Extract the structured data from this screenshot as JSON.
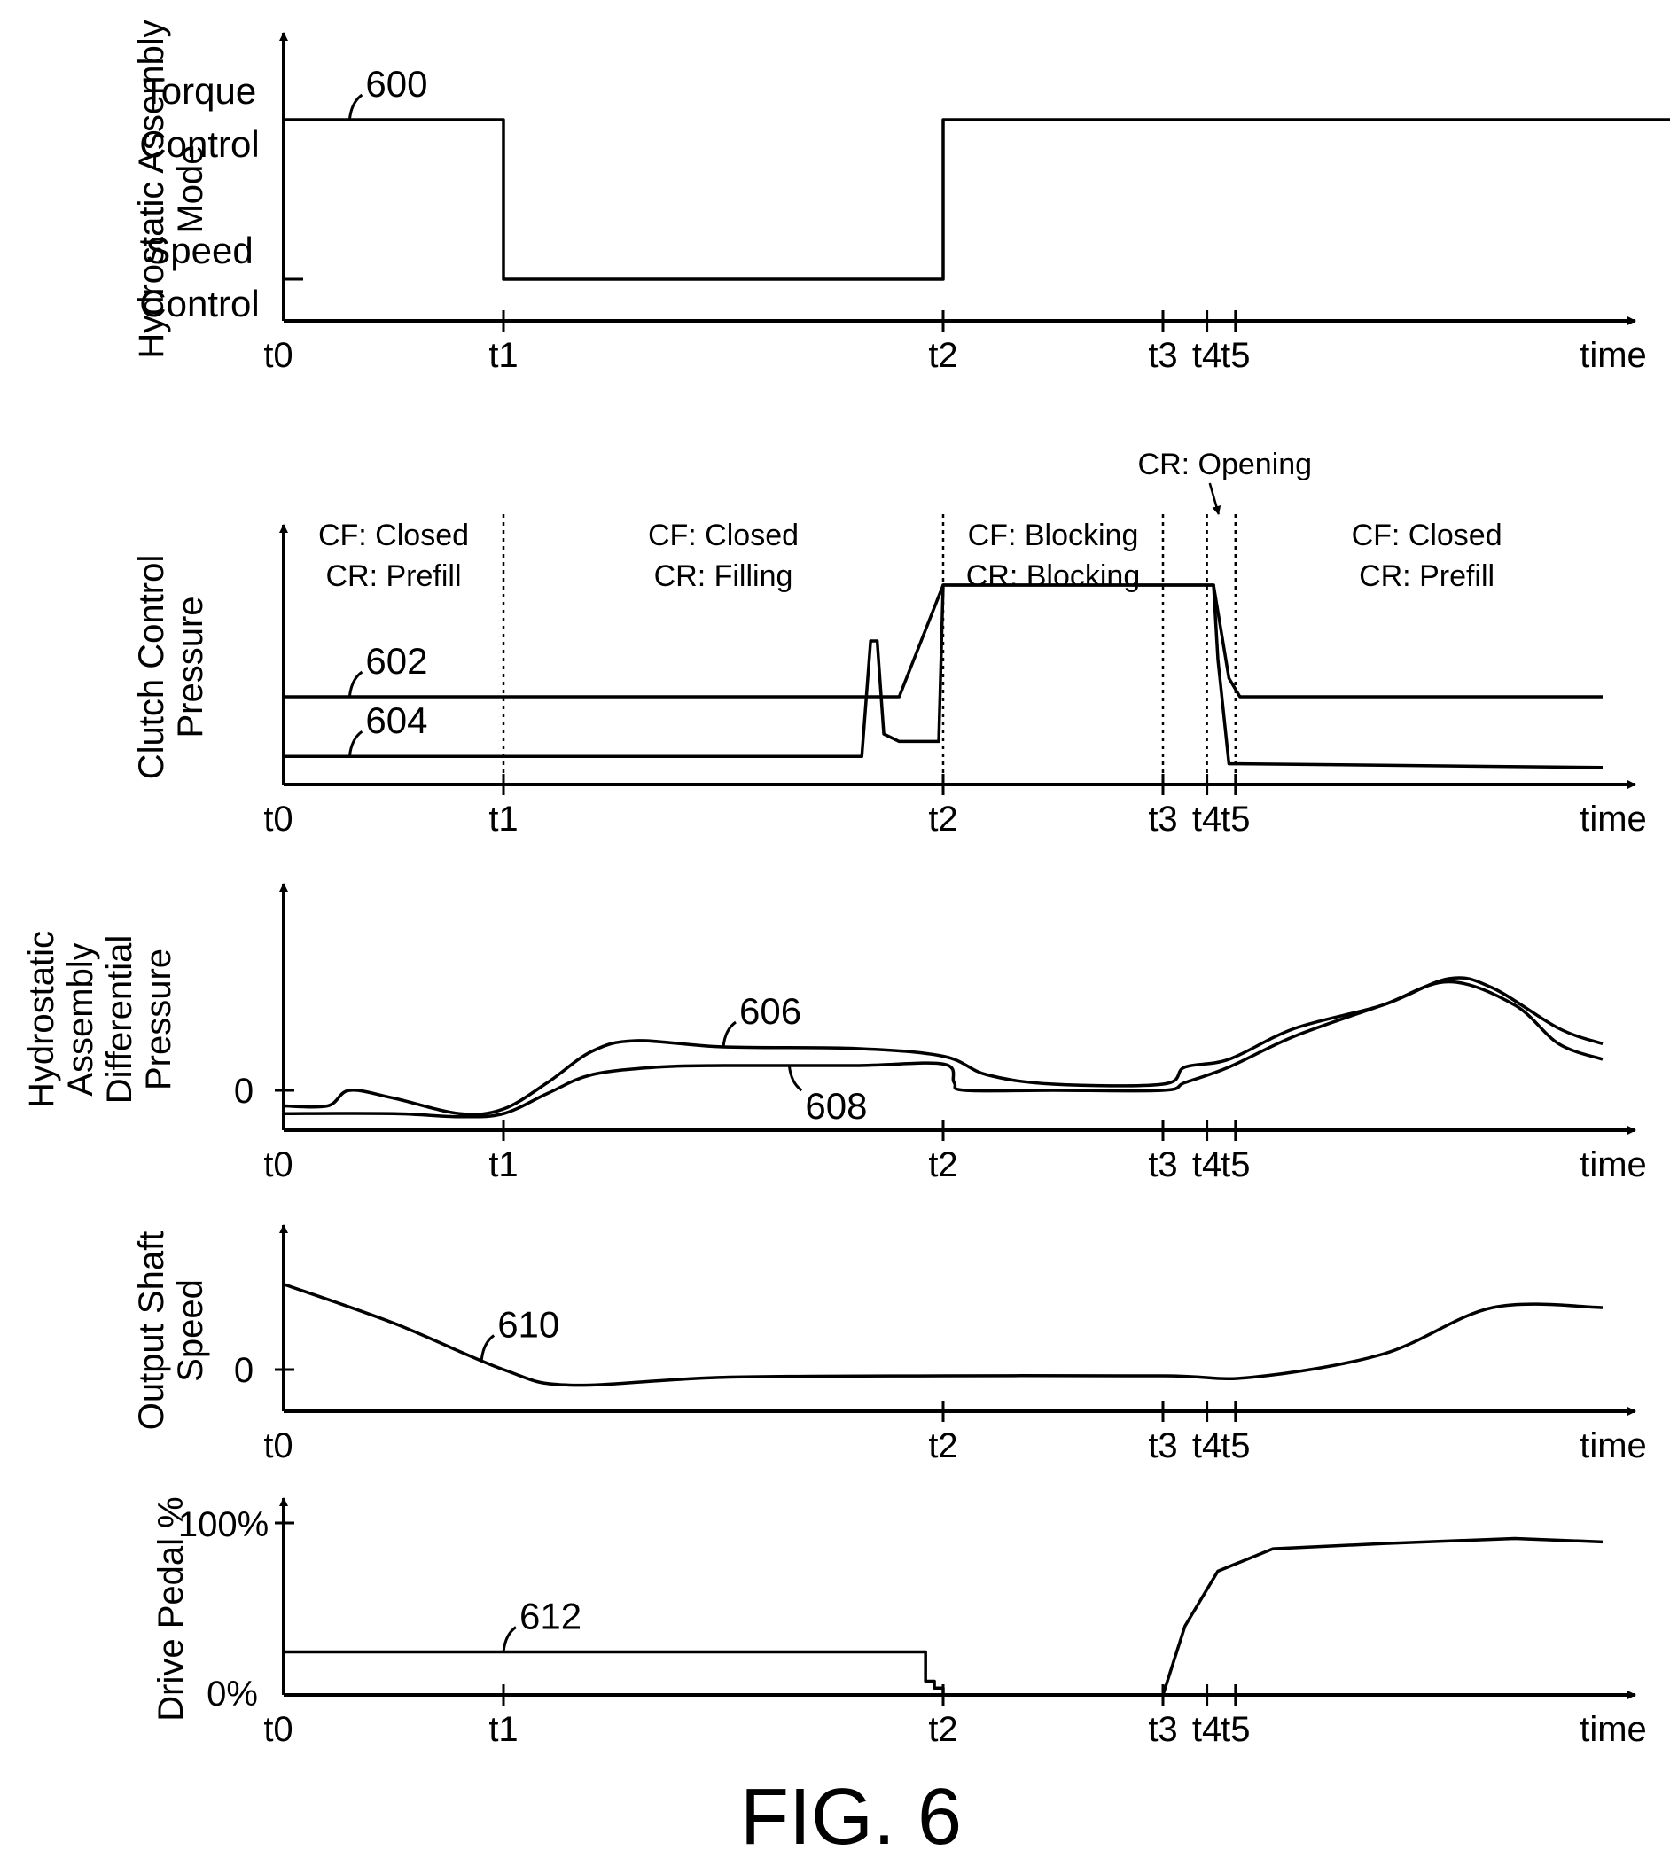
{
  "figure_label": "FIG. 6",
  "time_ticks": [
    "t0",
    "t1",
    "t2",
    "t3",
    "t4",
    "t5"
  ],
  "time_axis_label": "time",
  "chart_data": [
    {
      "type": "line",
      "id": "mode",
      "ylabel": [
        "Hydrostatic Assembly",
        "Mode"
      ],
      "y_levels": [
        {
          "name": "torque",
          "text": [
            "Torque",
            "Control"
          ]
        },
        {
          "name": "speed",
          "text": [
            "Speed",
            "Control"
          ]
        }
      ],
      "shown_ticks": [
        "t0",
        "t1",
        "t2",
        "t3",
        "t4",
        "t5"
      ],
      "series": [
        {
          "name": "600",
          "label": "600",
          "label_at": 0.3,
          "x": [
            0,
            1,
            1,
            3,
            3,
            6.5
          ],
          "y": [
            1,
            1,
            0,
            0,
            1,
            1
          ]
        }
      ]
    },
    {
      "type": "line",
      "id": "clutch",
      "ylabel": [
        "Clutch Control",
        "Pressure"
      ],
      "dashed_markers": [
        "t1",
        "t2",
        "t3",
        "t4",
        "t5"
      ],
      "shown_ticks": [
        "t0",
        "t1",
        "t2",
        "t3",
        "t4",
        "t5"
      ],
      "phase_annotations": [
        {
          "text": [
            "CF: Closed",
            "CR: Prefill"
          ],
          "x": 0.5
        },
        {
          "text": [
            "CF: Closed",
            "CR: Filling"
          ],
          "x": 2.0
        },
        {
          "text": [
            "CF: Blocking",
            "CR: Blocking"
          ],
          "x": 3.5
        },
        {
          "text": [
            "CF: Closed",
            "CR: Prefill"
          ],
          "x": 5.2
        }
      ],
      "callout": {
        "text": "CR: Opening",
        "x": 4.1
      },
      "series": [
        {
          "name": "602",
          "label": "602",
          "label_at": 0.3,
          "x": [
            0,
            2.8,
            3.0,
            4.23,
            4.3,
            4.35,
            6.0
          ],
          "y": [
            0.2,
            0.2,
            0.5,
            0.5,
            0.25,
            0.2,
            0.2
          ]
        },
        {
          "name": "604",
          "label": "604",
          "label_at": 0.3,
          "x": [
            0,
            2.63,
            2.67,
            2.7,
            2.73,
            2.8,
            2.98,
            3.0,
            3.02,
            4.23,
            4.25,
            4.3,
            4.35,
            6.0
          ],
          "y": [
            0.04,
            0.04,
            0.35,
            0.35,
            0.1,
            0.08,
            0.08,
            0.5,
            0.5,
            0.5,
            0.3,
            0.02,
            0.02,
            0.01
          ]
        }
      ]
    },
    {
      "type": "line",
      "id": "diffp",
      "ylabel": [
        "Hydrostatic",
        "Assembly",
        "Differential",
        "Pressure"
      ],
      "zero_label": "0",
      "shown_ticks": [
        "t0",
        "t1",
        "t2",
        "t3",
        "t4",
        "t5"
      ],
      "series": [
        {
          "name": "606",
          "label": "606",
          "label_at": 2.0,
          "x": [
            0,
            0.2,
            0.3,
            0.5,
            0.8,
            1.0,
            1.2,
            1.4,
            1.6,
            2.0,
            2.6,
            3.0,
            3.2,
            3.5,
            4.0,
            4.1,
            4.3,
            4.6,
            5.0,
            5.3,
            5.5,
            5.8,
            6.0
          ],
          "y": [
            -0.1,
            -0.1,
            0.0,
            -0.05,
            -0.15,
            -0.12,
            0.05,
            0.25,
            0.32,
            0.28,
            0.27,
            0.22,
            0.1,
            0.04,
            0.04,
            0.15,
            0.2,
            0.4,
            0.55,
            0.72,
            0.66,
            0.4,
            0.3
          ]
        },
        {
          "name": "608",
          "label": "608",
          "label_at": 2.3,
          "x": [
            0,
            0.5,
            0.8,
            1.0,
            1.2,
            1.4,
            1.7,
            2.0,
            2.6,
            3.0,
            3.05,
            3.1,
            3.5,
            4.0,
            4.1,
            4.3,
            4.6,
            5.0,
            5.3,
            5.6,
            5.8,
            6.0
          ],
          "y": [
            -0.15,
            -0.15,
            -0.17,
            -0.15,
            -0.02,
            0.1,
            0.15,
            0.16,
            0.16,
            0.17,
            0.05,
            0.0,
            0.0,
            0.0,
            0.05,
            0.15,
            0.35,
            0.55,
            0.7,
            0.55,
            0.3,
            0.2
          ]
        }
      ]
    },
    {
      "type": "line",
      "id": "shaft",
      "ylabel": [
        "Output Shaft",
        "Speed"
      ],
      "zero_label": "0",
      "shown_ticks": [
        "t0",
        "t2",
        "t3",
        "t4",
        "t5"
      ],
      "series": [
        {
          "name": "610",
          "label": "610",
          "label_at": 0.9,
          "x": [
            0,
            0.5,
            1.0,
            1.3,
            2.0,
            3.0,
            4.0,
            4.4,
            5.0,
            5.5,
            6.0
          ],
          "y": [
            0.55,
            0.3,
            0.0,
            -0.1,
            -0.05,
            -0.04,
            -0.04,
            -0.05,
            0.1,
            0.4,
            0.4
          ]
        }
      ]
    },
    {
      "type": "line",
      "id": "pedal",
      "ylabel": [
        "Drive Pedal %"
      ],
      "y_tick_labels": [
        "100%",
        "0%"
      ],
      "shown_ticks": [
        "t0",
        "t1",
        "t2",
        "t3",
        "t4",
        "t5"
      ],
      "series": [
        {
          "name": "612",
          "label": "612",
          "label_at": 1.0,
          "x": [
            0,
            2.92,
            2.92,
            2.96,
            2.96,
            3.0,
            3.0,
            4.0,
            4.1,
            4.25,
            4.5,
            5.0,
            5.6,
            6.0
          ],
          "y": [
            25,
            25,
            8,
            8,
            4,
            4,
            0,
            0,
            40,
            72,
            85,
            88,
            91,
            89
          ]
        }
      ]
    }
  ]
}
